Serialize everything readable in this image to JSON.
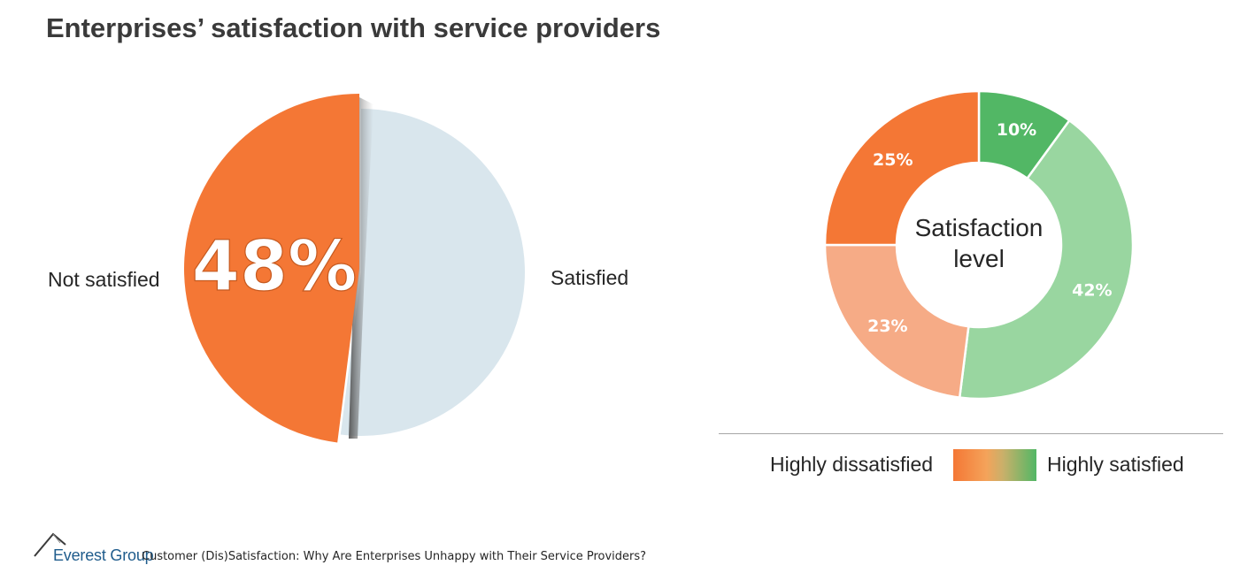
{
  "title": "Enterprises’ satisfaction with service providers",
  "colors": {
    "orange": "#f47735",
    "light_blue": "#d9e6ed",
    "light_orange": "#f6ab86",
    "green": "#52b765",
    "light_green": "#99d6a0"
  },
  "chart_data": [
    {
      "type": "pie",
      "labels": [
        "Not satisfied",
        "Satisfied"
      ],
      "values": [
        48,
        52
      ],
      "data_labels": [
        "48%",
        ""
      ]
    },
    {
      "type": "pie",
      "title": "Satisfaction level",
      "labels": [
        "",
        "",
        "",
        ""
      ],
      "values": [
        10,
        42,
        23,
        25
      ],
      "data_labels": [
        "10%",
        "42%",
        "23%",
        "25%"
      ],
      "legend": [
        "Highly dissatisfied",
        "Highly satisfied"
      ]
    }
  ],
  "footer": {
    "brand": "Everest Group",
    "source": "Customer (Dis)Satisfaction: Why Are Enterprises Unhappy with Their Service Providers?"
  }
}
